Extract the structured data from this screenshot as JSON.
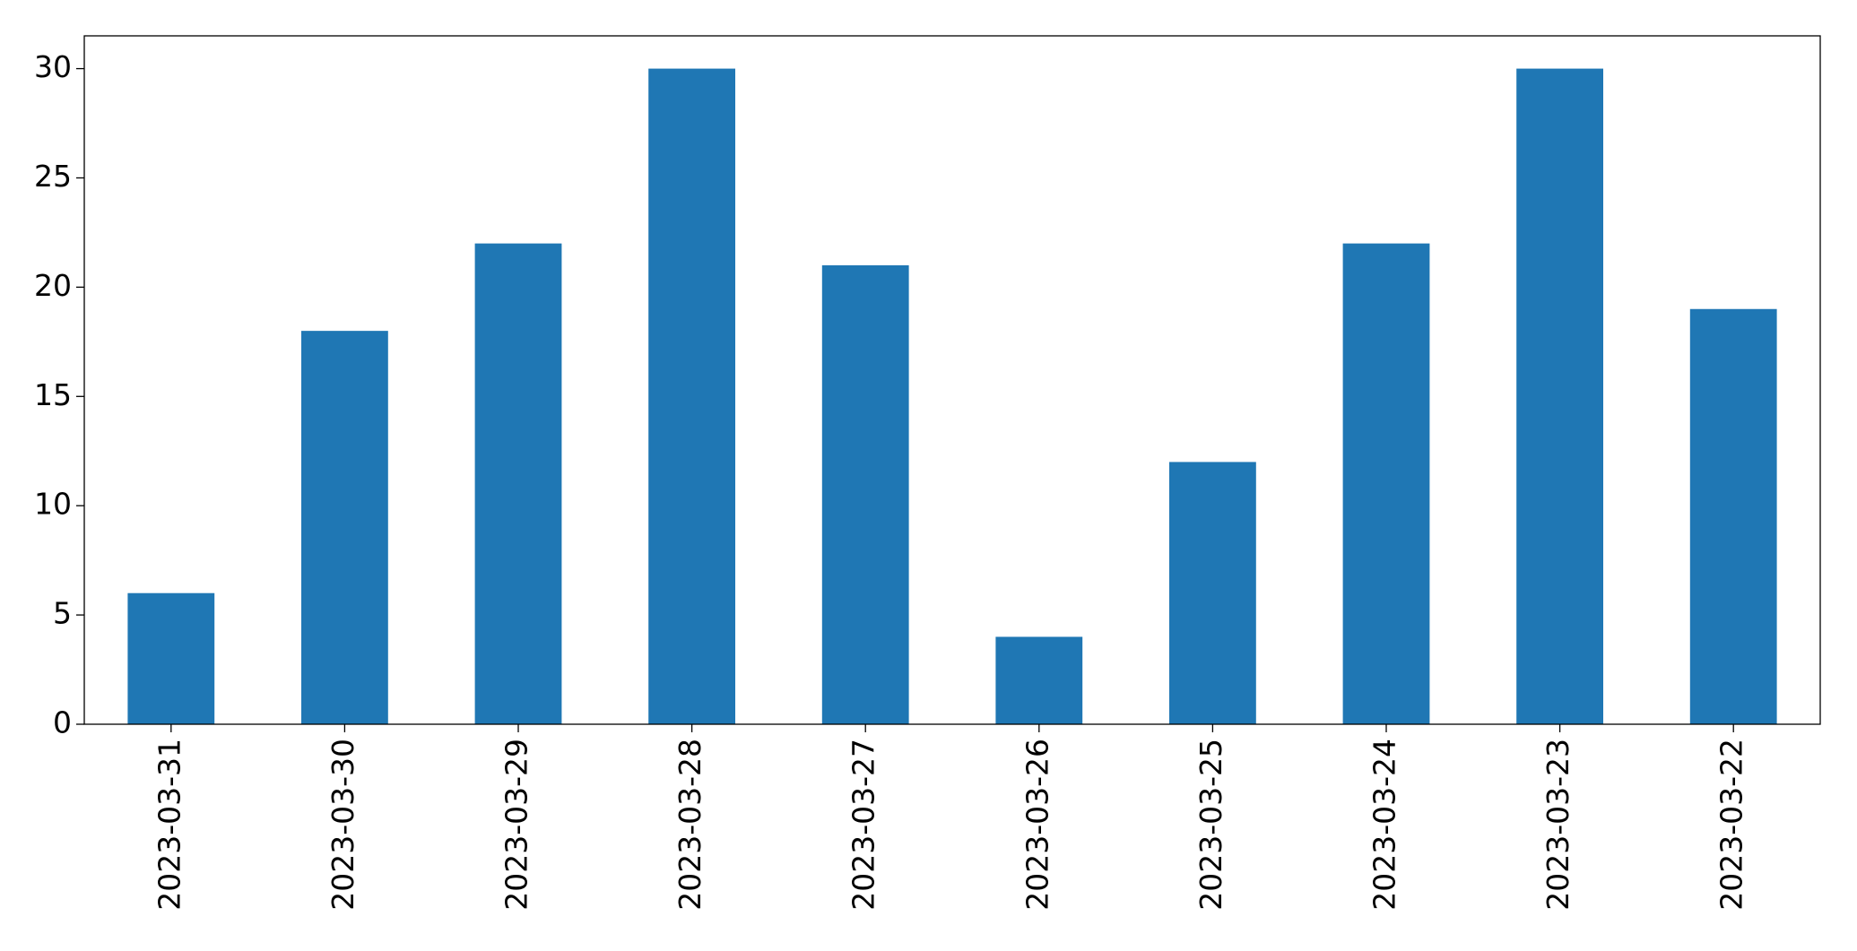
{
  "chart_data": {
    "type": "bar",
    "categories": [
      "2023-03-31",
      "2023-03-30",
      "2023-03-29",
      "2023-03-28",
      "2023-03-27",
      "2023-03-26",
      "2023-03-25",
      "2023-03-24",
      "2023-03-23",
      "2023-03-22"
    ],
    "values": [
      6,
      18,
      22,
      30,
      21,
      4,
      12,
      22,
      30,
      19
    ],
    "color": "#1f77b4",
    "ylim": [
      0,
      31.5
    ],
    "yticks": [
      0,
      5,
      10,
      15,
      20,
      25,
      30
    ],
    "grid": false
  }
}
